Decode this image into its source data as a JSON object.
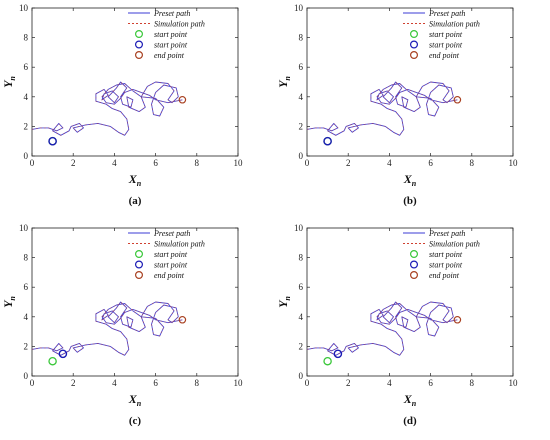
{
  "chart_data": [
    {
      "type": "line",
      "panel_label": "(a)",
      "xlabel": "X",
      "xlabel_sub": "n",
      "ylabel": "Y",
      "ylabel_sub": "n",
      "xlim": [
        0,
        10
      ],
      "ylim": [
        0,
        10
      ],
      "xticks": [
        "0",
        "2",
        "4",
        "6",
        "8",
        "10"
      ],
      "yticks": [
        "0",
        "2",
        "4",
        "6",
        "8",
        "10"
      ],
      "legend_position": "top-right",
      "legend": [
        {
          "label": "Preset path",
          "kind": "line",
          "color": "#3b3bd6"
        },
        {
          "label": "Simulation path",
          "kind": "dash",
          "color": "#d04030"
        },
        {
          "label": "start point",
          "kind": "circle",
          "color": "#39c739"
        },
        {
          "label": "start point",
          "kind": "circle",
          "color": "#1b1bb5"
        },
        {
          "label": "end point",
          "kind": "circle",
          "color": "#a84020"
        }
      ],
      "points": {
        "green": [
          1.0,
          1.0
        ],
        "blue": [
          1.0,
          1.0
        ],
        "end": [
          7.3,
          3.8
        ]
      }
    },
    {
      "type": "line",
      "panel_label": "(b)",
      "xlabel": "X",
      "xlabel_sub": "n",
      "ylabel": "Y",
      "ylabel_sub": "n",
      "xlim": [
        0,
        10
      ],
      "ylim": [
        0,
        10
      ],
      "xticks": [
        "0",
        "2",
        "4",
        "6",
        "8",
        "10"
      ],
      "yticks": [
        "0",
        "2",
        "4",
        "6",
        "8",
        "10"
      ],
      "legend_position": "top-right",
      "legend": [
        {
          "label": "Preset path",
          "kind": "line",
          "color": "#3b3bd6"
        },
        {
          "label": "Simulation path",
          "kind": "dash",
          "color": "#d04030"
        },
        {
          "label": "start point",
          "kind": "circle",
          "color": "#39c739"
        },
        {
          "label": "start point",
          "kind": "circle",
          "color": "#1b1bb5"
        },
        {
          "label": "end point",
          "kind": "circle",
          "color": "#a84020"
        }
      ],
      "points": {
        "green": [
          1.0,
          1.0
        ],
        "blue": [
          1.0,
          1.0
        ],
        "end": [
          7.3,
          3.8
        ]
      }
    },
    {
      "type": "line",
      "panel_label": "(c)",
      "xlabel": "X",
      "xlabel_sub": "n",
      "ylabel": "Y",
      "ylabel_sub": "n",
      "xlim": [
        0,
        10
      ],
      "ylim": [
        0,
        10
      ],
      "xticks": [
        "0",
        "2",
        "4",
        "6",
        "8",
        "10"
      ],
      "yticks": [
        "0",
        "2",
        "4",
        "6",
        "8",
        "10"
      ],
      "legend_position": "top-right",
      "legend": [
        {
          "label": "Preset path",
          "kind": "line",
          "color": "#3b3bd6"
        },
        {
          "label": "Simulation path",
          "kind": "dash",
          "color": "#d04030"
        },
        {
          "label": "start point",
          "kind": "circle",
          "color": "#39c739"
        },
        {
          "label": "start point",
          "kind": "circle",
          "color": "#1b1bb5"
        },
        {
          "label": "end point",
          "kind": "circle",
          "color": "#a84020"
        }
      ],
      "points": {
        "green": [
          1.0,
          1.0
        ],
        "blue": [
          1.5,
          1.5
        ],
        "end": [
          7.3,
          3.8
        ]
      }
    },
    {
      "type": "line",
      "panel_label": "(d)",
      "xlabel": "X",
      "xlabel_sub": "n",
      "ylabel": "Y",
      "ylabel_sub": "n",
      "xlim": [
        0,
        10
      ],
      "ylim": [
        0,
        10
      ],
      "xticks": [
        "0",
        "2",
        "4",
        "6",
        "8",
        "10"
      ],
      "yticks": [
        "0",
        "2",
        "4",
        "6",
        "8",
        "10"
      ],
      "legend_position": "top-right",
      "legend": [
        {
          "label": "Preset path",
          "kind": "line",
          "color": "#3b3bd6"
        },
        {
          "label": "Simulation path",
          "kind": "dash",
          "color": "#d04030"
        },
        {
          "label": "start point",
          "kind": "circle",
          "color": "#39c739"
        },
        {
          "label": "start point",
          "kind": "circle",
          "color": "#1b1bb5"
        },
        {
          "label": "end point",
          "kind": "circle",
          "color": "#a84020"
        }
      ],
      "points": {
        "green": [
          1.0,
          1.0
        ],
        "blue": [
          1.5,
          1.5
        ],
        "end": [
          7.3,
          3.8
        ]
      }
    }
  ],
  "path": [
    [
      0.0,
      1.8
    ],
    [
      0.4,
      1.9
    ],
    [
      0.8,
      1.9
    ],
    [
      1.2,
      1.7
    ],
    [
      1.5,
      1.9
    ],
    [
      1.3,
      2.2
    ],
    [
      1.0,
      1.7
    ],
    [
      1.4,
      1.4
    ],
    [
      1.8,
      1.7
    ],
    [
      1.9,
      2.0
    ],
    [
      2.3,
      2.2
    ],
    [
      2.5,
      1.9
    ],
    [
      2.2,
      1.6
    ],
    [
      2.0,
      1.9
    ],
    [
      2.6,
      2.1
    ],
    [
      3.2,
      2.2
    ],
    [
      3.8,
      2.0
    ],
    [
      4.2,
      1.6
    ],
    [
      4.5,
      1.4
    ],
    [
      4.7,
      1.8
    ],
    [
      4.6,
      2.5
    ],
    [
      4.3,
      3.0
    ],
    [
      3.9,
      3.2
    ],
    [
      3.6,
      3.5
    ],
    [
      3.1,
      3.7
    ],
    [
      3.1,
      4.2
    ],
    [
      3.5,
      4.5
    ],
    [
      3.7,
      4.1
    ],
    [
      3.4,
      3.8
    ],
    [
      3.5,
      4.2
    ],
    [
      3.9,
      4.4
    ],
    [
      4.2,
      4.0
    ],
    [
      4.0,
      3.6
    ],
    [
      3.7,
      4.0
    ],
    [
      4.1,
      4.6
    ],
    [
      4.3,
      5.0
    ],
    [
      4.6,
      4.6
    ],
    [
      4.3,
      4.0
    ],
    [
      4.4,
      3.5
    ],
    [
      4.8,
      3.3
    ],
    [
      4.9,
      3.8
    ],
    [
      4.6,
      4.0
    ],
    [
      4.7,
      3.3
    ],
    [
      5.2,
      3.0
    ],
    [
      5.5,
      3.3
    ],
    [
      5.3,
      4.0
    ],
    [
      5.6,
      4.7
    ],
    [
      6.0,
      5.0
    ],
    [
      6.6,
      4.9
    ],
    [
      6.9,
      4.4
    ],
    [
      6.6,
      3.8
    ],
    [
      6.8,
      3.6
    ],
    [
      7.1,
      4.0
    ],
    [
      7.0,
      4.6
    ],
    [
      6.4,
      4.8
    ],
    [
      6.0,
      4.3
    ],
    [
      5.8,
      3.5
    ],
    [
      5.9,
      2.8
    ],
    [
      6.2,
      2.7
    ],
    [
      6.4,
      3.3
    ],
    [
      6.0,
      3.9
    ],
    [
      5.3,
      4.0
    ],
    [
      4.9,
      4.4
    ],
    [
      4.5,
      4.9
    ],
    [
      4.1,
      4.8
    ],
    [
      3.7,
      4.5
    ],
    [
      3.4,
      4.0
    ],
    [
      3.6,
      3.6
    ],
    [
      4.0,
      3.5
    ],
    [
      4.3,
      3.9
    ],
    [
      4.5,
      4.3
    ],
    [
      4.9,
      4.5
    ],
    [
      5.3,
      4.3
    ],
    [
      5.7,
      4.1
    ],
    [
      6.0,
      3.8
    ],
    [
      6.6,
      3.6
    ],
    [
      7.3,
      3.8
    ]
  ]
}
